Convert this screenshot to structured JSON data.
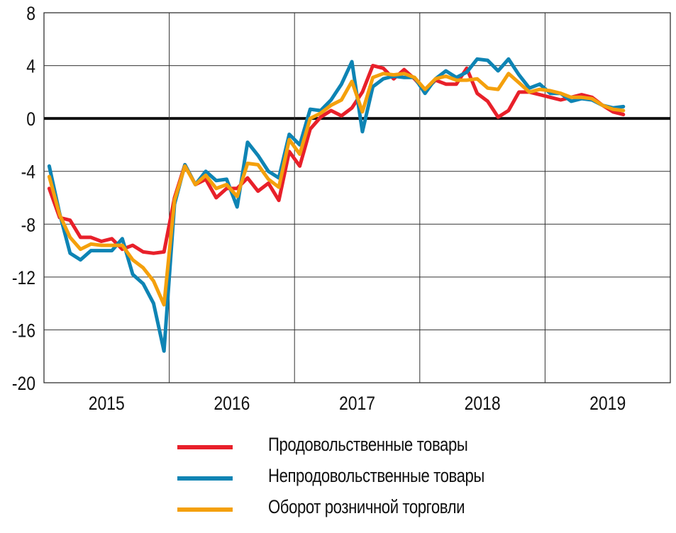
{
  "chart_data": {
    "type": "line",
    "title": "",
    "xlabel": "",
    "ylabel": "",
    "ylim": [
      -20,
      8
    ],
    "yticks": [
      "8",
      "4",
      "0",
      "-4",
      "-8",
      "-12",
      "-16",
      "-20"
    ],
    "ytick_values": [
      8,
      4,
      0,
      -4,
      -8,
      -12,
      -16,
      -20
    ],
    "years": [
      "2015",
      "2016",
      "2017",
      "2018",
      "2019"
    ],
    "x_start": "2015-01",
    "grid": true,
    "zero_line": true,
    "legend_position": "bottom",
    "series": [
      {
        "name": "Продовольственные  товары",
        "color": "#e8202a",
        "values": [
          -5.3,
          -7.5,
          -7.7,
          -9.0,
          -9.0,
          -9.3,
          -9.1,
          -9.9,
          -9.6,
          -10.1,
          -10.2,
          -10.1,
          -6.0,
          -3.5,
          -5.0,
          -4.6,
          -6.0,
          -5.3,
          -5.3,
          -4.5,
          -5.5,
          -4.9,
          -6.2,
          -2.5,
          -3.6,
          -0.8,
          0.1,
          0.6,
          0.2,
          0.8,
          2.0,
          4.0,
          3.8,
          3.0,
          3.7,
          3.0,
          2.1,
          2.9,
          2.6,
          2.6,
          3.8,
          1.9,
          1.3,
          0.1,
          0.6,
          2.0,
          2.0,
          1.8,
          1.6,
          1.4,
          1.6,
          1.8,
          1.6,
          1.0,
          0.5,
          0.3
        ]
      },
      {
        "name": "Непродовольственные товары",
        "color": "#0e84b4",
        "values": [
          -3.6,
          -7.2,
          -10.2,
          -10.7,
          -10.0,
          -10.0,
          -10.0,
          -9.1,
          -11.8,
          -12.5,
          -14.0,
          -17.6,
          -6.5,
          -3.5,
          -5.0,
          -4.0,
          -4.7,
          -4.6,
          -6.7,
          -1.8,
          -2.8,
          -4.0,
          -4.5,
          -1.2,
          -2.0,
          0.7,
          0.6,
          1.4,
          2.6,
          4.3,
          -1.0,
          2.4,
          3.0,
          3.2,
          3.1,
          3.1,
          1.9,
          3.0,
          3.6,
          3.1,
          3.5,
          4.5,
          4.4,
          3.6,
          4.5,
          3.3,
          2.3,
          2.6,
          1.9,
          1.9,
          1.3,
          1.5,
          1.4,
          1.0,
          0.8,
          0.9
        ]
      },
      {
        "name": "Оборот розничной торговли",
        "color": "#f4a00c",
        "values": [
          -4.4,
          -7.3,
          -9.0,
          -9.9,
          -9.5,
          -9.6,
          -9.6,
          -9.6,
          -10.7,
          -11.3,
          -12.3,
          -14.1,
          -6.2,
          -3.6,
          -5.0,
          -4.3,
          -5.3,
          -5.0,
          -5.9,
          -3.4,
          -3.5,
          -4.6,
          -5.2,
          -1.6,
          -2.7,
          0.0,
          0.4,
          1.0,
          1.4,
          2.8,
          0.5,
          3.1,
          3.4,
          3.3,
          3.4,
          3.1,
          2.2,
          3.0,
          3.2,
          2.9,
          2.9,
          3.0,
          2.3,
          2.2,
          3.4,
          2.7,
          2.0,
          2.2,
          2.1,
          1.9,
          1.6,
          1.6,
          1.5,
          1.0,
          0.7,
          0.6
        ]
      }
    ]
  }
}
